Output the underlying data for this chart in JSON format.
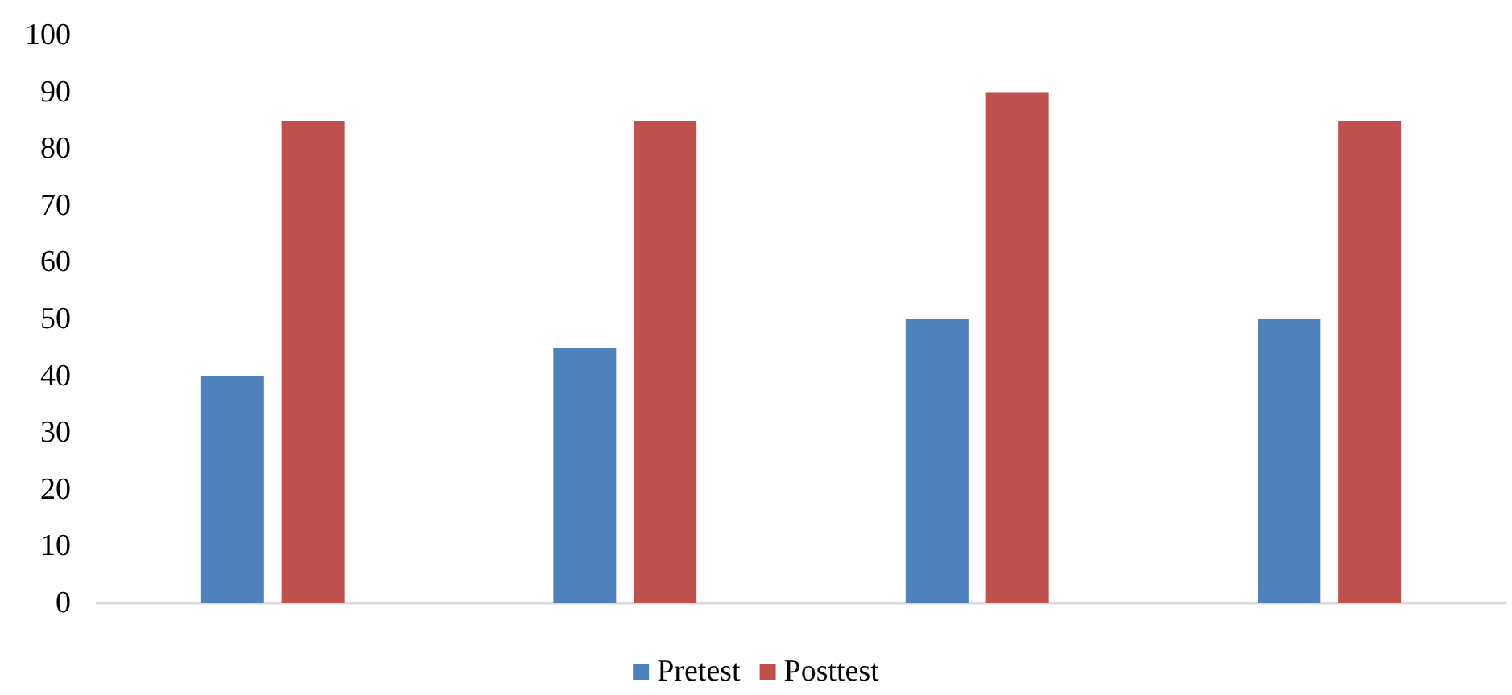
{
  "chart_data": {
    "type": "bar",
    "categories": [
      null,
      null,
      null,
      null
    ],
    "series": [
      {
        "name": "Pretest",
        "color": "#4f81bd",
        "values": [
          40,
          45,
          50,
          50
        ]
      },
      {
        "name": "Posttest",
        "color": "#c0504d",
        "values": [
          85,
          85,
          90,
          85
        ]
      }
    ],
    "ylim": [
      0,
      100
    ],
    "yticks": [
      0,
      10,
      20,
      30,
      40,
      50,
      60,
      70,
      80,
      90,
      100
    ],
    "grid": false,
    "legend": "bottom"
  }
}
